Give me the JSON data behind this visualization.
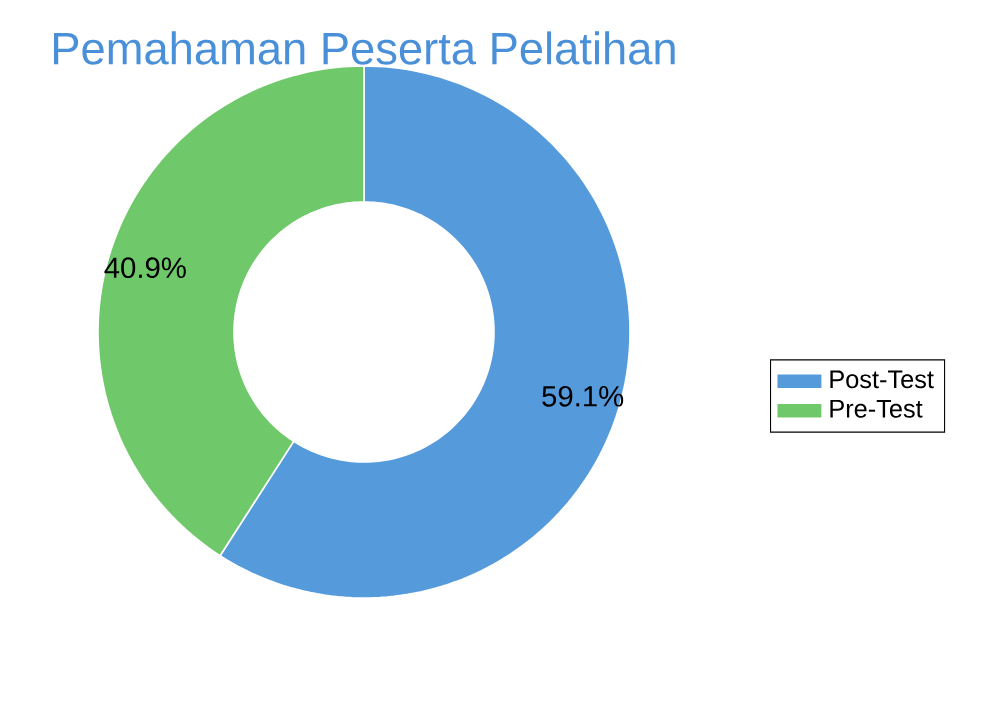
{
  "chart_data": {
    "type": "donut",
    "title": "Pemahaman Peserta Pelatihan",
    "categories": [
      "Post-Test",
      "Pre-Test"
    ],
    "values": [
      59.1,
      40.9
    ],
    "colors": [
      "#559bdc",
      "#6fc86a"
    ],
    "value_labels": [
      "59.1%",
      "40.9%"
    ],
    "legend": "right"
  }
}
